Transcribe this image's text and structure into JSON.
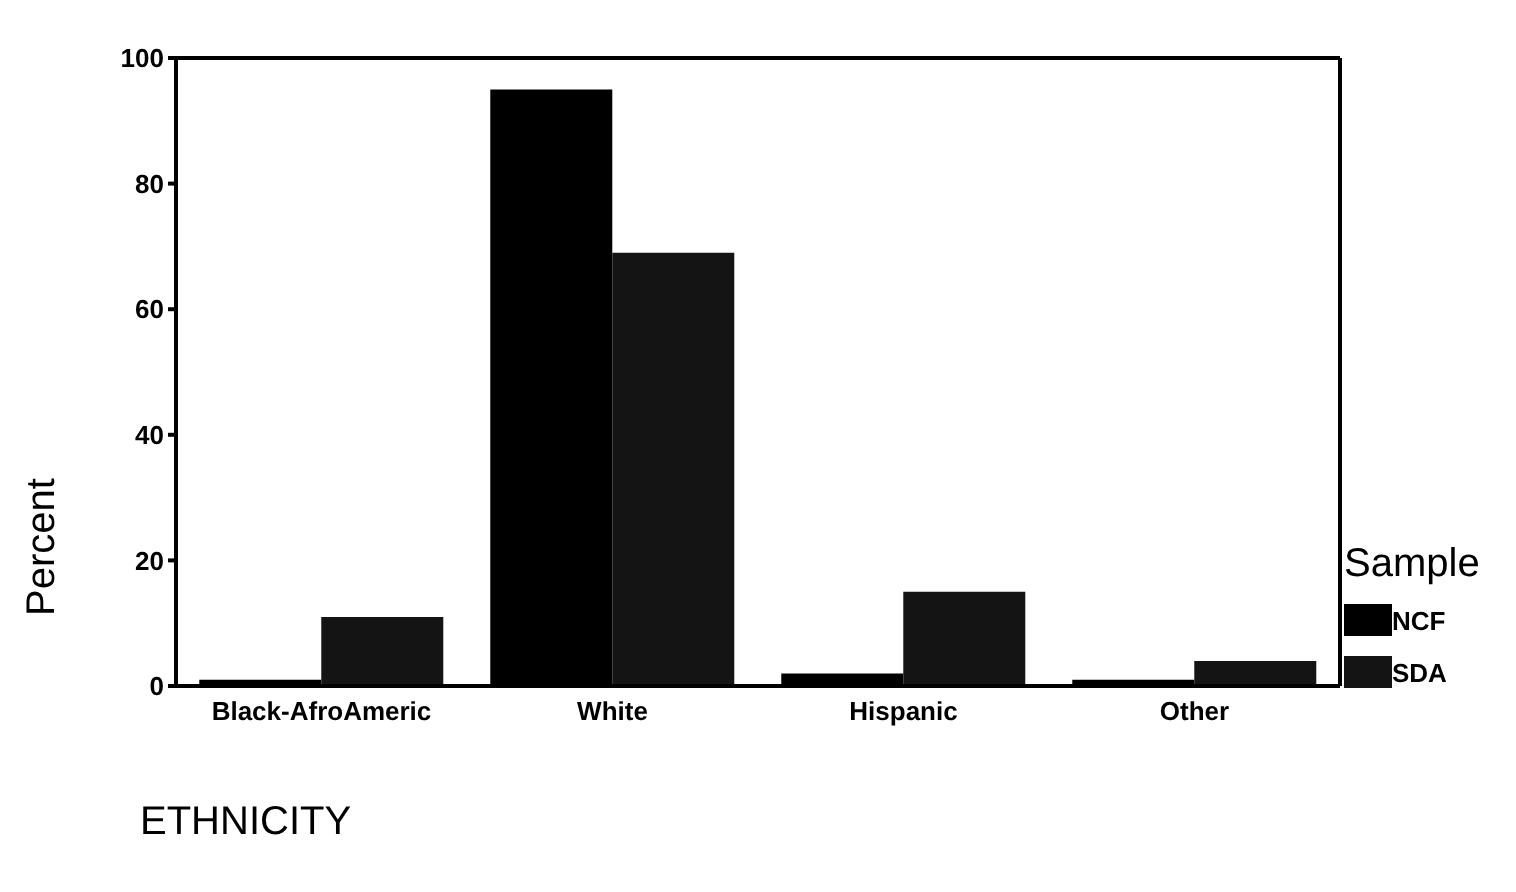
{
  "chart_data": {
    "type": "bar",
    "xlabel": "ETHNICITY",
    "ylabel": "Percent",
    "legend_title": "Sample",
    "categories": [
      "Black-AfroAmeric",
      "White",
      "Hispanic",
      "Other"
    ],
    "series": [
      {
        "name": "NCF",
        "color": "#000000",
        "values": [
          1,
          95,
          2,
          1
        ]
      },
      {
        "name": "SDA",
        "color": "#141414",
        "values": [
          11,
          69,
          15,
          4
        ]
      }
    ],
    "ylim": [
      0,
      100
    ],
    "yticks": [
      0,
      20,
      40,
      60,
      80,
      100
    ],
    "legend": "right"
  }
}
